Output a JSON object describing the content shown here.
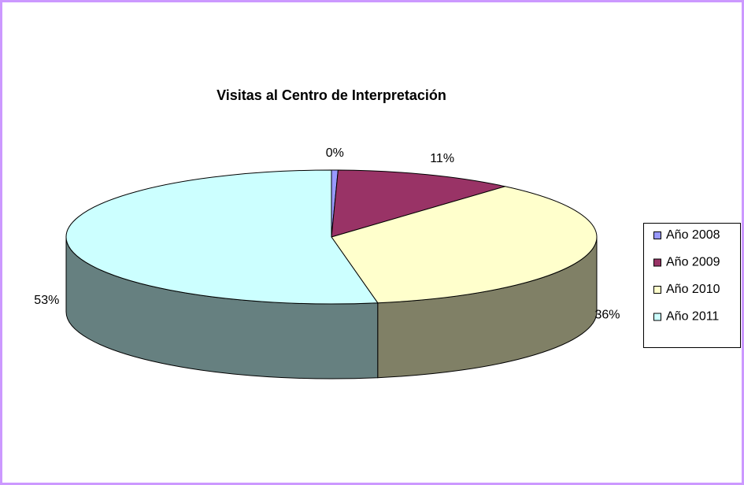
{
  "chart_data": {
    "type": "pie3d",
    "title": "Visitas al Centro de Interpretación",
    "categories": [
      "Año 2008",
      "Año 2009",
      "Año 2010",
      "Año 2011"
    ],
    "values": [
      0.4,
      11,
      36,
      53
    ],
    "value_labels": [
      "0%",
      "11%",
      "36%",
      "53%"
    ],
    "colors": [
      "#9999ff",
      "#993366",
      "#ffffcc",
      "#ccffff"
    ],
    "legend": "right"
  }
}
